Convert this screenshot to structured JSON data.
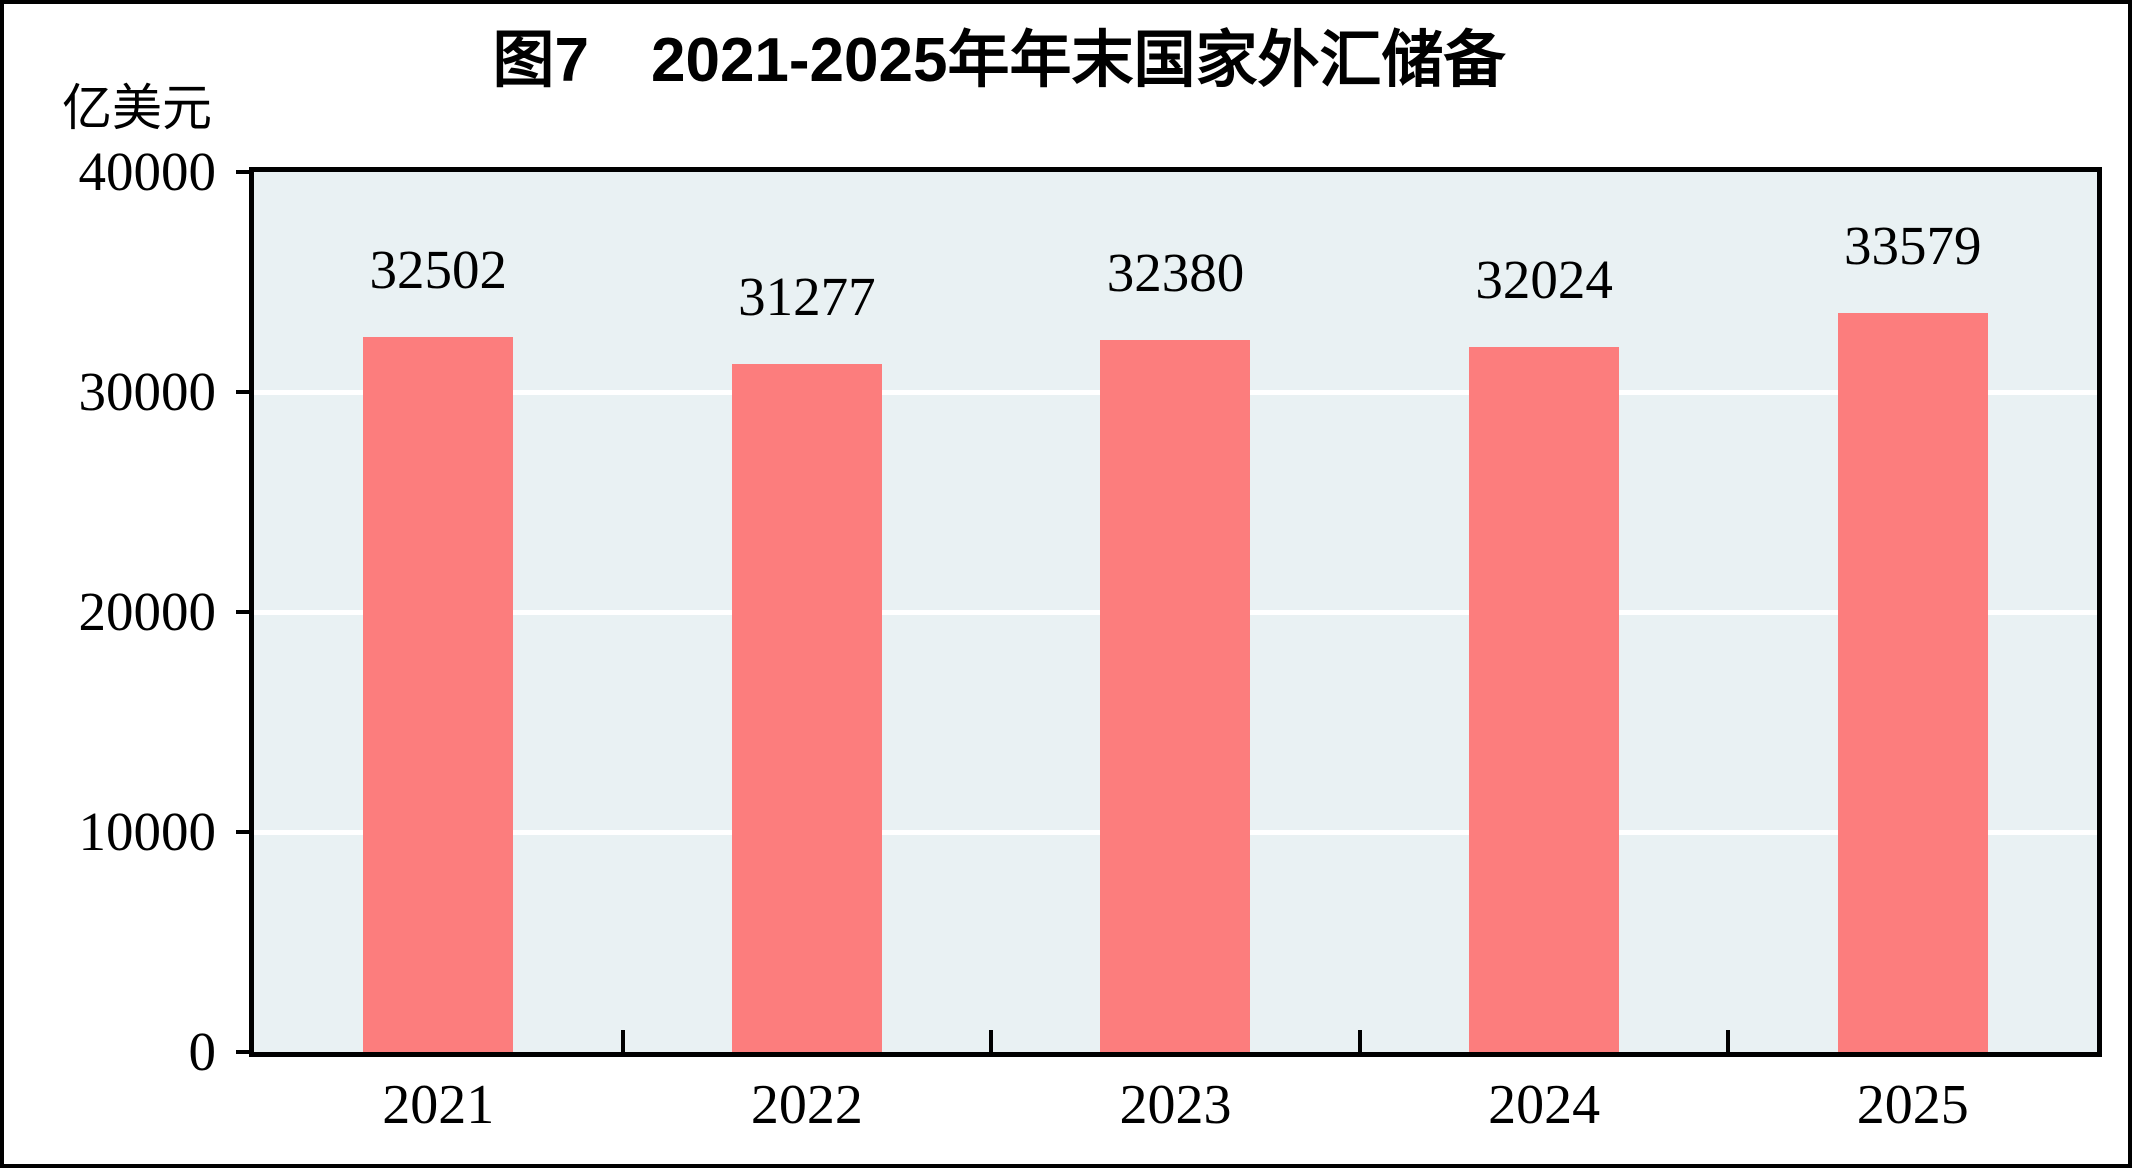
{
  "figure": {
    "title": "图7　2021-2025年年末国家外汇储备",
    "unit_label": "亿美元"
  },
  "chart_data": {
    "type": "bar",
    "title": "图7 2021-2025年年末国家外汇储备",
    "categories": [
      "2021",
      "2022",
      "2023",
      "2024",
      "2025"
    ],
    "values": [
      32502,
      31277,
      32380,
      32024,
      33579
    ],
    "xlabel": "",
    "ylabel": "亿美元",
    "ylim": [
      0,
      40000
    ],
    "y_ticks": [
      0,
      10000,
      20000,
      30000,
      40000
    ],
    "gridlines": "horizontal white at 10000/20000/30000",
    "legend": "none",
    "colors": {
      "bar_fill": "#FC7D7D",
      "plot_background": "#E9F1F3",
      "gridline": "#FFFFFF",
      "axis_frame": "#000000",
      "text": "#000000",
      "page_background": "#FFFFFF"
    }
  }
}
